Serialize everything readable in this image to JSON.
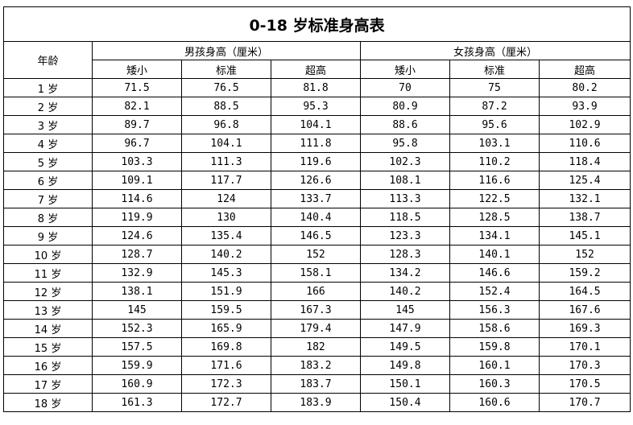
{
  "title": "0-18 岁标准身高表",
  "headers": {
    "age": "年龄",
    "boys": "男孩身高（厘米）",
    "girls": "女孩身高（厘米）",
    "short": "矮小",
    "standard": "标准",
    "tall": "超高"
  },
  "rows": [
    {
      "age": "1 岁",
      "boy_short": "71.5",
      "boy_std": "76.5",
      "boy_tall": "81.8",
      "girl_short": "70",
      "girl_std": "75",
      "girl_tall": "80.2"
    },
    {
      "age": "2 岁",
      "boy_short": "82.1",
      "boy_std": "88.5",
      "boy_tall": "95.3",
      "girl_short": "80.9",
      "girl_std": "87.2",
      "girl_tall": "93.9"
    },
    {
      "age": "3 岁",
      "boy_short": "89.7",
      "boy_std": "96.8",
      "boy_tall": "104.1",
      "girl_short": "88.6",
      "girl_std": "95.6",
      "girl_tall": "102.9"
    },
    {
      "age": "4 岁",
      "boy_short": "96.7",
      "boy_std": "104.1",
      "boy_tall": "111.8",
      "girl_short": "95.8",
      "girl_std": "103.1",
      "girl_tall": "110.6"
    },
    {
      "age": "5 岁",
      "boy_short": "103.3",
      "boy_std": "111.3",
      "boy_tall": "119.6",
      "girl_short": "102.3",
      "girl_std": "110.2",
      "girl_tall": "118.4"
    },
    {
      "age": "6 岁",
      "boy_short": "109.1",
      "boy_std": "117.7",
      "boy_tall": "126.6",
      "girl_short": "108.1",
      "girl_std": "116.6",
      "girl_tall": "125.4"
    },
    {
      "age": "7 岁",
      "boy_short": "114.6",
      "boy_std": "124",
      "boy_tall": "133.7",
      "girl_short": "113.3",
      "girl_std": "122.5",
      "girl_tall": "132.1"
    },
    {
      "age": "8 岁",
      "boy_short": "119.9",
      "boy_std": "130",
      "boy_tall": "140.4",
      "girl_short": "118.5",
      "girl_std": "128.5",
      "girl_tall": "138.7"
    },
    {
      "age": "9 岁",
      "boy_short": "124.6",
      "boy_std": "135.4",
      "boy_tall": "146.5",
      "girl_short": "123.3",
      "girl_std": "134.1",
      "girl_tall": "145.1"
    },
    {
      "age": "10 岁",
      "boy_short": "128.7",
      "boy_std": "140.2",
      "boy_tall": "152",
      "girl_short": "128.3",
      "girl_std": "140.1",
      "girl_tall": "152"
    },
    {
      "age": "11 岁",
      "boy_short": "132.9",
      "boy_std": "145.3",
      "boy_tall": "158.1",
      "girl_short": "134.2",
      "girl_std": "146.6",
      "girl_tall": "159.2"
    },
    {
      "age": "12 岁",
      "boy_short": "138.1",
      "boy_std": "151.9",
      "boy_tall": "166",
      "girl_short": "140.2",
      "girl_std": "152.4",
      "girl_tall": "164.5"
    },
    {
      "age": "13 岁",
      "boy_short": "145",
      "boy_std": "159.5",
      "boy_tall": "167.3",
      "girl_short": "145",
      "girl_std": "156.3",
      "girl_tall": "167.6"
    },
    {
      "age": "14 岁",
      "boy_short": "152.3",
      "boy_std": "165.9",
      "boy_tall": "179.4",
      "girl_short": "147.9",
      "girl_std": "158.6",
      "girl_tall": "169.3"
    },
    {
      "age": "15 岁",
      "boy_short": "157.5",
      "boy_std": "169.8",
      "boy_tall": "182",
      "girl_short": "149.5",
      "girl_std": "159.8",
      "girl_tall": "170.1"
    },
    {
      "age": "16 岁",
      "boy_short": "159.9",
      "boy_std": "171.6",
      "boy_tall": "183.2",
      "girl_short": "149.8",
      "girl_std": "160.1",
      "girl_tall": "170.3"
    },
    {
      "age": "17 岁",
      "boy_short": "160.9",
      "boy_std": "172.3",
      "boy_tall": "183.7",
      "girl_short": "150.1",
      "girl_std": "160.3",
      "girl_tall": "170.5"
    },
    {
      "age": "18 岁",
      "boy_short": "161.3",
      "boy_std": "172.7",
      "boy_tall": "183.9",
      "girl_short": "150.4",
      "girl_std": "160.6",
      "girl_tall": "170.7"
    }
  ]
}
